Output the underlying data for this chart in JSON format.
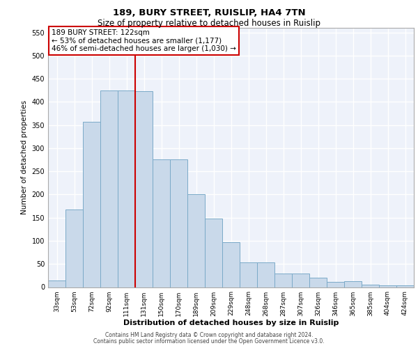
{
  "title1": "189, BURY STREET, RUISLIP, HA4 7TN",
  "title2": "Size of property relative to detached houses in Ruislip",
  "xlabel": "Distribution of detached houses by size in Ruislip",
  "ylabel": "Number of detached properties",
  "footnote1": "Contains HM Land Registry data © Crown copyright and database right 2024.",
  "footnote2": "Contains public sector information licensed under the Open Government Licence v3.0.",
  "annotation_line1": "189 BURY STREET: 122sqm",
  "annotation_line2": "← 53% of detached houses are smaller (1,177)",
  "annotation_line3": "46% of semi-detached houses are larger (1,030) →",
  "bar_color": "#c9d9ea",
  "bar_edge_color": "#7aaac8",
  "vline_color": "#cc0000",
  "background_color": "#eef2fa",
  "grid_color": "#ffffff",
  "categories": [
    "33sqm",
    "53sqm",
    "72sqm",
    "92sqm",
    "111sqm",
    "131sqm",
    "150sqm",
    "170sqm",
    "189sqm",
    "209sqm",
    "229sqm",
    "248sqm",
    "268sqm",
    "287sqm",
    "307sqm",
    "326sqm",
    "346sqm",
    "365sqm",
    "385sqm",
    "404sqm",
    "424sqm"
  ],
  "values": [
    14,
    168,
    357,
    425,
    425,
    423,
    276,
    276,
    200,
    148,
    97,
    54,
    54,
    29,
    29,
    21,
    11,
    13,
    6,
    4,
    4
  ],
  "ylim": [
    0,
    560
  ],
  "yticks": [
    0,
    50,
    100,
    150,
    200,
    250,
    300,
    350,
    400,
    450,
    500,
    550
  ],
  "vline_x_idx": 5,
  "ann_box_color": "#cc0000",
  "ann_bg": "white",
  "title1_fontsize": 9.5,
  "title2_fontsize": 8.5,
  "ylabel_fontsize": 7.5,
  "xlabel_fontsize": 8,
  "tick_fontsize": 6.5,
  "ann_fontsize": 7.5,
  "footnote_fontsize": 5.5
}
